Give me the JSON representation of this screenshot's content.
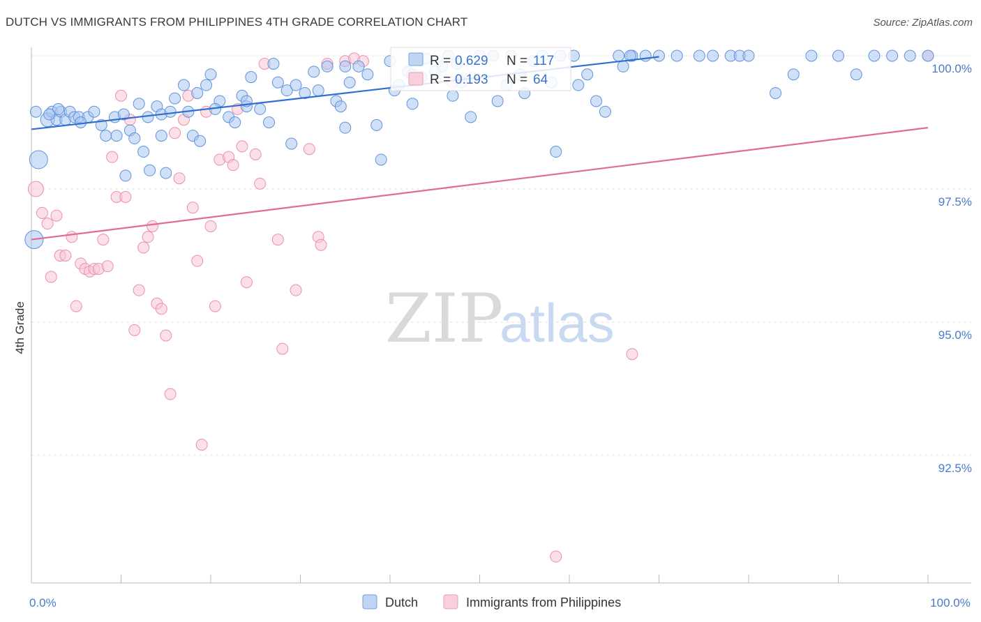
{
  "title": "DUTCH VS IMMIGRANTS FROM PHILIPPINES 4TH GRADE CORRELATION CHART",
  "source": "Source: ZipAtlas.com",
  "watermark": {
    "zip": "ZIP",
    "atlas": "atlas"
  },
  "legend_box": {
    "rows": [
      {
        "r_label": "R =",
        "r_value": "0.629",
        "n_label": "N =",
        "n_value": "117",
        "color": "#6f9fe0"
      },
      {
        "r_label": "R =",
        "r_value": "0.193",
        "n_label": "N =",
        "n_value": "64",
        "color": "#ee9db6"
      }
    ]
  },
  "bottom_legend": [
    {
      "label": "Dutch",
      "color": "#6f9fe0"
    },
    {
      "label": "Immigrants from Philippines",
      "color": "#ee9db6"
    }
  ],
  "chart_data": {
    "type": "scatter",
    "xlabel": "",
    "ylabel": "4th Grade",
    "xlim": [
      0,
      100
    ],
    "ylim": [
      90.3,
      100.3
    ],
    "y_ticks": [
      {
        "value": 100.0,
        "label": "100.0%"
      },
      {
        "value": 97.5,
        "label": "97.5%"
      },
      {
        "value": 95.0,
        "label": "95.0%"
      },
      {
        "value": 92.5,
        "label": "92.5%"
      }
    ],
    "x_ticks": [
      {
        "value": 0,
        "label": "0.0%"
      },
      {
        "value": 100,
        "label": "100.0%"
      }
    ],
    "grid": "horizontal dashed",
    "legend_placement": "bottom-center",
    "series": [
      {
        "name": "Dutch",
        "color": "#6f9fe0",
        "trendline": {
          "x0": 0,
          "y0": 98.62,
          "x1": 70,
          "y1": 99.98
        },
        "points": [
          [
            1.8,
            98.8
          ],
          [
            2.3,
            98.95
          ],
          [
            2.8,
            98.8
          ],
          [
            3.3,
            98.95
          ],
          [
            3.8,
            98.8
          ],
          [
            4.3,
            98.95
          ],
          [
            4.8,
            98.85
          ],
          [
            5.3,
            98.85
          ],
          [
            6.3,
            98.85
          ],
          [
            7.0,
            98.95
          ],
          [
            7.8,
            98.7
          ],
          [
            8.3,
            98.5
          ],
          [
            9.3,
            98.85
          ],
          [
            10.3,
            98.9
          ],
          [
            11.0,
            98.6
          ],
          [
            11.5,
            98.45
          ],
          [
            12.0,
            99.1
          ],
          [
            13.0,
            98.85
          ],
          [
            14.0,
            99.05
          ],
          [
            14.5,
            98.9
          ],
          [
            15.5,
            98.95
          ],
          [
            16.0,
            99.2
          ],
          [
            17.0,
            99.45
          ],
          [
            17.5,
            98.95
          ],
          [
            18.0,
            98.5
          ],
          [
            18.8,
            98.4
          ],
          [
            19.5,
            99.45
          ],
          [
            20.0,
            99.65
          ],
          [
            21.0,
            99.15
          ],
          [
            22.0,
            98.85
          ],
          [
            22.7,
            98.75
          ],
          [
            23.5,
            99.25
          ],
          [
            24.0,
            99.05
          ],
          [
            25.5,
            99.0
          ],
          [
            26.5,
            98.75
          ],
          [
            27.0,
            99.85
          ],
          [
            27.5,
            99.5
          ],
          [
            28.5,
            99.35
          ],
          [
            29.0,
            98.35
          ],
          [
            29.5,
            99.45
          ],
          [
            30.5,
            99.3
          ],
          [
            31.5,
            99.7
          ],
          [
            32.0,
            99.35
          ],
          [
            33.0,
            99.8
          ],
          [
            34.0,
            99.15
          ],
          [
            34.5,
            99.05
          ],
          [
            35.0,
            98.65
          ],
          [
            35.5,
            99.5
          ],
          [
            36.5,
            99.8
          ],
          [
            37.5,
            99.65
          ],
          [
            38.5,
            98.7
          ],
          [
            39.0,
            98.05
          ],
          [
            40.0,
            99.9
          ],
          [
            40.5,
            99.35
          ],
          [
            41.0,
            99.45
          ],
          [
            42.0,
            99.7
          ],
          [
            42.5,
            99.65
          ],
          [
            43.5,
            99.6
          ],
          [
            44.0,
            99.95
          ],
          [
            45.0,
            99.7
          ],
          [
            45.8,
            99.8
          ],
          [
            46.5,
            100.0
          ],
          [
            47.5,
            99.85
          ],
          [
            48.0,
            99.5
          ],
          [
            49.0,
            98.85
          ],
          [
            50.0,
            100.0
          ],
          [
            51.5,
            100.0
          ],
          [
            52.0,
            99.15
          ],
          [
            53.0,
            99.45
          ],
          [
            53.5,
            100.0
          ],
          [
            54.5,
            99.65
          ],
          [
            55.0,
            99.3
          ],
          [
            56.0,
            99.9
          ],
          [
            57.0,
            100.0
          ],
          [
            58.0,
            99.5
          ],
          [
            59.0,
            100.0
          ],
          [
            60.5,
            100.0
          ],
          [
            62.0,
            99.65
          ],
          [
            63.0,
            99.15
          ],
          [
            64.0,
            98.95
          ],
          [
            65.5,
            100.0
          ],
          [
            66.0,
            99.8
          ],
          [
            67.0,
            100.0
          ],
          [
            68.5,
            100.0
          ],
          [
            70.0,
            100.0
          ],
          [
            72.0,
            100.0
          ],
          [
            74.5,
            100.0
          ],
          [
            76.0,
            100.0
          ],
          [
            78.0,
            100.0
          ],
          [
            79.0,
            100.0
          ],
          [
            80.0,
            100.0
          ],
          [
            83.0,
            99.3
          ],
          [
            85.0,
            99.65
          ],
          [
            87.0,
            100.0
          ],
          [
            90.0,
            100.0
          ],
          [
            92.0,
            99.65
          ],
          [
            94.0,
            100.0
          ],
          [
            96.0,
            100.0
          ],
          [
            98.0,
            100.0
          ],
          [
            100.0,
            100.0
          ],
          [
            66.8,
            100.0
          ],
          [
            61.0,
            99.45
          ],
          [
            58.5,
            98.2
          ],
          [
            47.0,
            99.25
          ],
          [
            42.5,
            99.1
          ],
          [
            35.0,
            99.8
          ],
          [
            24.5,
            99.6
          ],
          [
            20.5,
            99.0
          ],
          [
            14.5,
            98.5
          ],
          [
            9.5,
            98.5
          ],
          [
            5.5,
            98.75
          ],
          [
            3.0,
            99.0
          ],
          [
            2.0,
            98.9
          ],
          [
            0.5,
            98.95
          ],
          [
            12.5,
            98.2
          ],
          [
            10.5,
            97.75
          ],
          [
            0.8,
            98.05
          ],
          [
            0.3,
            96.55
          ],
          [
            13.2,
            97.85
          ],
          [
            15.0,
            97.8
          ],
          [
            18.5,
            99.3
          ],
          [
            24.0,
            99.15
          ]
        ],
        "sizes_note": "a few points drawn larger near x=0"
      },
      {
        "name": "Immigrants from Philippines",
        "color": "#ee9db6",
        "trendline": {
          "x0": 0,
          "y0": 96.55,
          "x1": 100,
          "y1": 98.65
        },
        "points": [
          [
            0.5,
            97.5
          ],
          [
            1.2,
            97.05
          ],
          [
            1.8,
            96.85
          ],
          [
            2.2,
            95.85
          ],
          [
            2.8,
            97.0
          ],
          [
            3.2,
            96.25
          ],
          [
            3.8,
            96.25
          ],
          [
            4.5,
            96.6
          ],
          [
            5.0,
            95.3
          ],
          [
            5.5,
            96.1
          ],
          [
            6.0,
            96.0
          ],
          [
            6.5,
            95.95
          ],
          [
            7.0,
            96.0
          ],
          [
            7.5,
            96.0
          ],
          [
            8.0,
            96.55
          ],
          [
            8.5,
            96.05
          ],
          [
            9.0,
            98.1
          ],
          [
            9.5,
            97.35
          ],
          [
            10.0,
            99.25
          ],
          [
            10.5,
            97.35
          ],
          [
            11.0,
            98.8
          ],
          [
            11.5,
            94.85
          ],
          [
            12.0,
            95.6
          ],
          [
            12.5,
            96.4
          ],
          [
            13.0,
            96.6
          ],
          [
            13.5,
            96.8
          ],
          [
            14.0,
            95.35
          ],
          [
            14.5,
            95.25
          ],
          [
            15.0,
            94.75
          ],
          [
            15.5,
            93.65
          ],
          [
            16.0,
            98.55
          ],
          [
            16.5,
            97.7
          ],
          [
            17.0,
            98.8
          ],
          [
            17.5,
            99.25
          ],
          [
            18.0,
            97.15
          ],
          [
            18.5,
            96.15
          ],
          [
            19.0,
            92.7
          ],
          [
            19.5,
            98.95
          ],
          [
            20.0,
            96.8
          ],
          [
            20.5,
            95.3
          ],
          [
            21.0,
            98.05
          ],
          [
            22.0,
            98.1
          ],
          [
            22.5,
            97.95
          ],
          [
            23.0,
            99.0
          ],
          [
            23.5,
            98.3
          ],
          [
            24.0,
            95.75
          ],
          [
            25.0,
            98.15
          ],
          [
            25.5,
            97.6
          ],
          [
            26.0,
            99.85
          ],
          [
            27.5,
            96.55
          ],
          [
            28.0,
            94.5
          ],
          [
            29.5,
            95.6
          ],
          [
            31.0,
            98.25
          ],
          [
            32.0,
            96.6
          ],
          [
            32.3,
            96.45
          ],
          [
            33.0,
            99.85
          ],
          [
            35.0,
            99.9
          ],
          [
            36.0,
            99.95
          ],
          [
            37.0,
            99.9
          ],
          [
            47.0,
            99.5
          ],
          [
            49.0,
            99.6
          ],
          [
            58.5,
            90.6
          ],
          [
            67.0,
            94.4
          ],
          [
            100.0,
            100.0
          ]
        ]
      }
    ]
  }
}
